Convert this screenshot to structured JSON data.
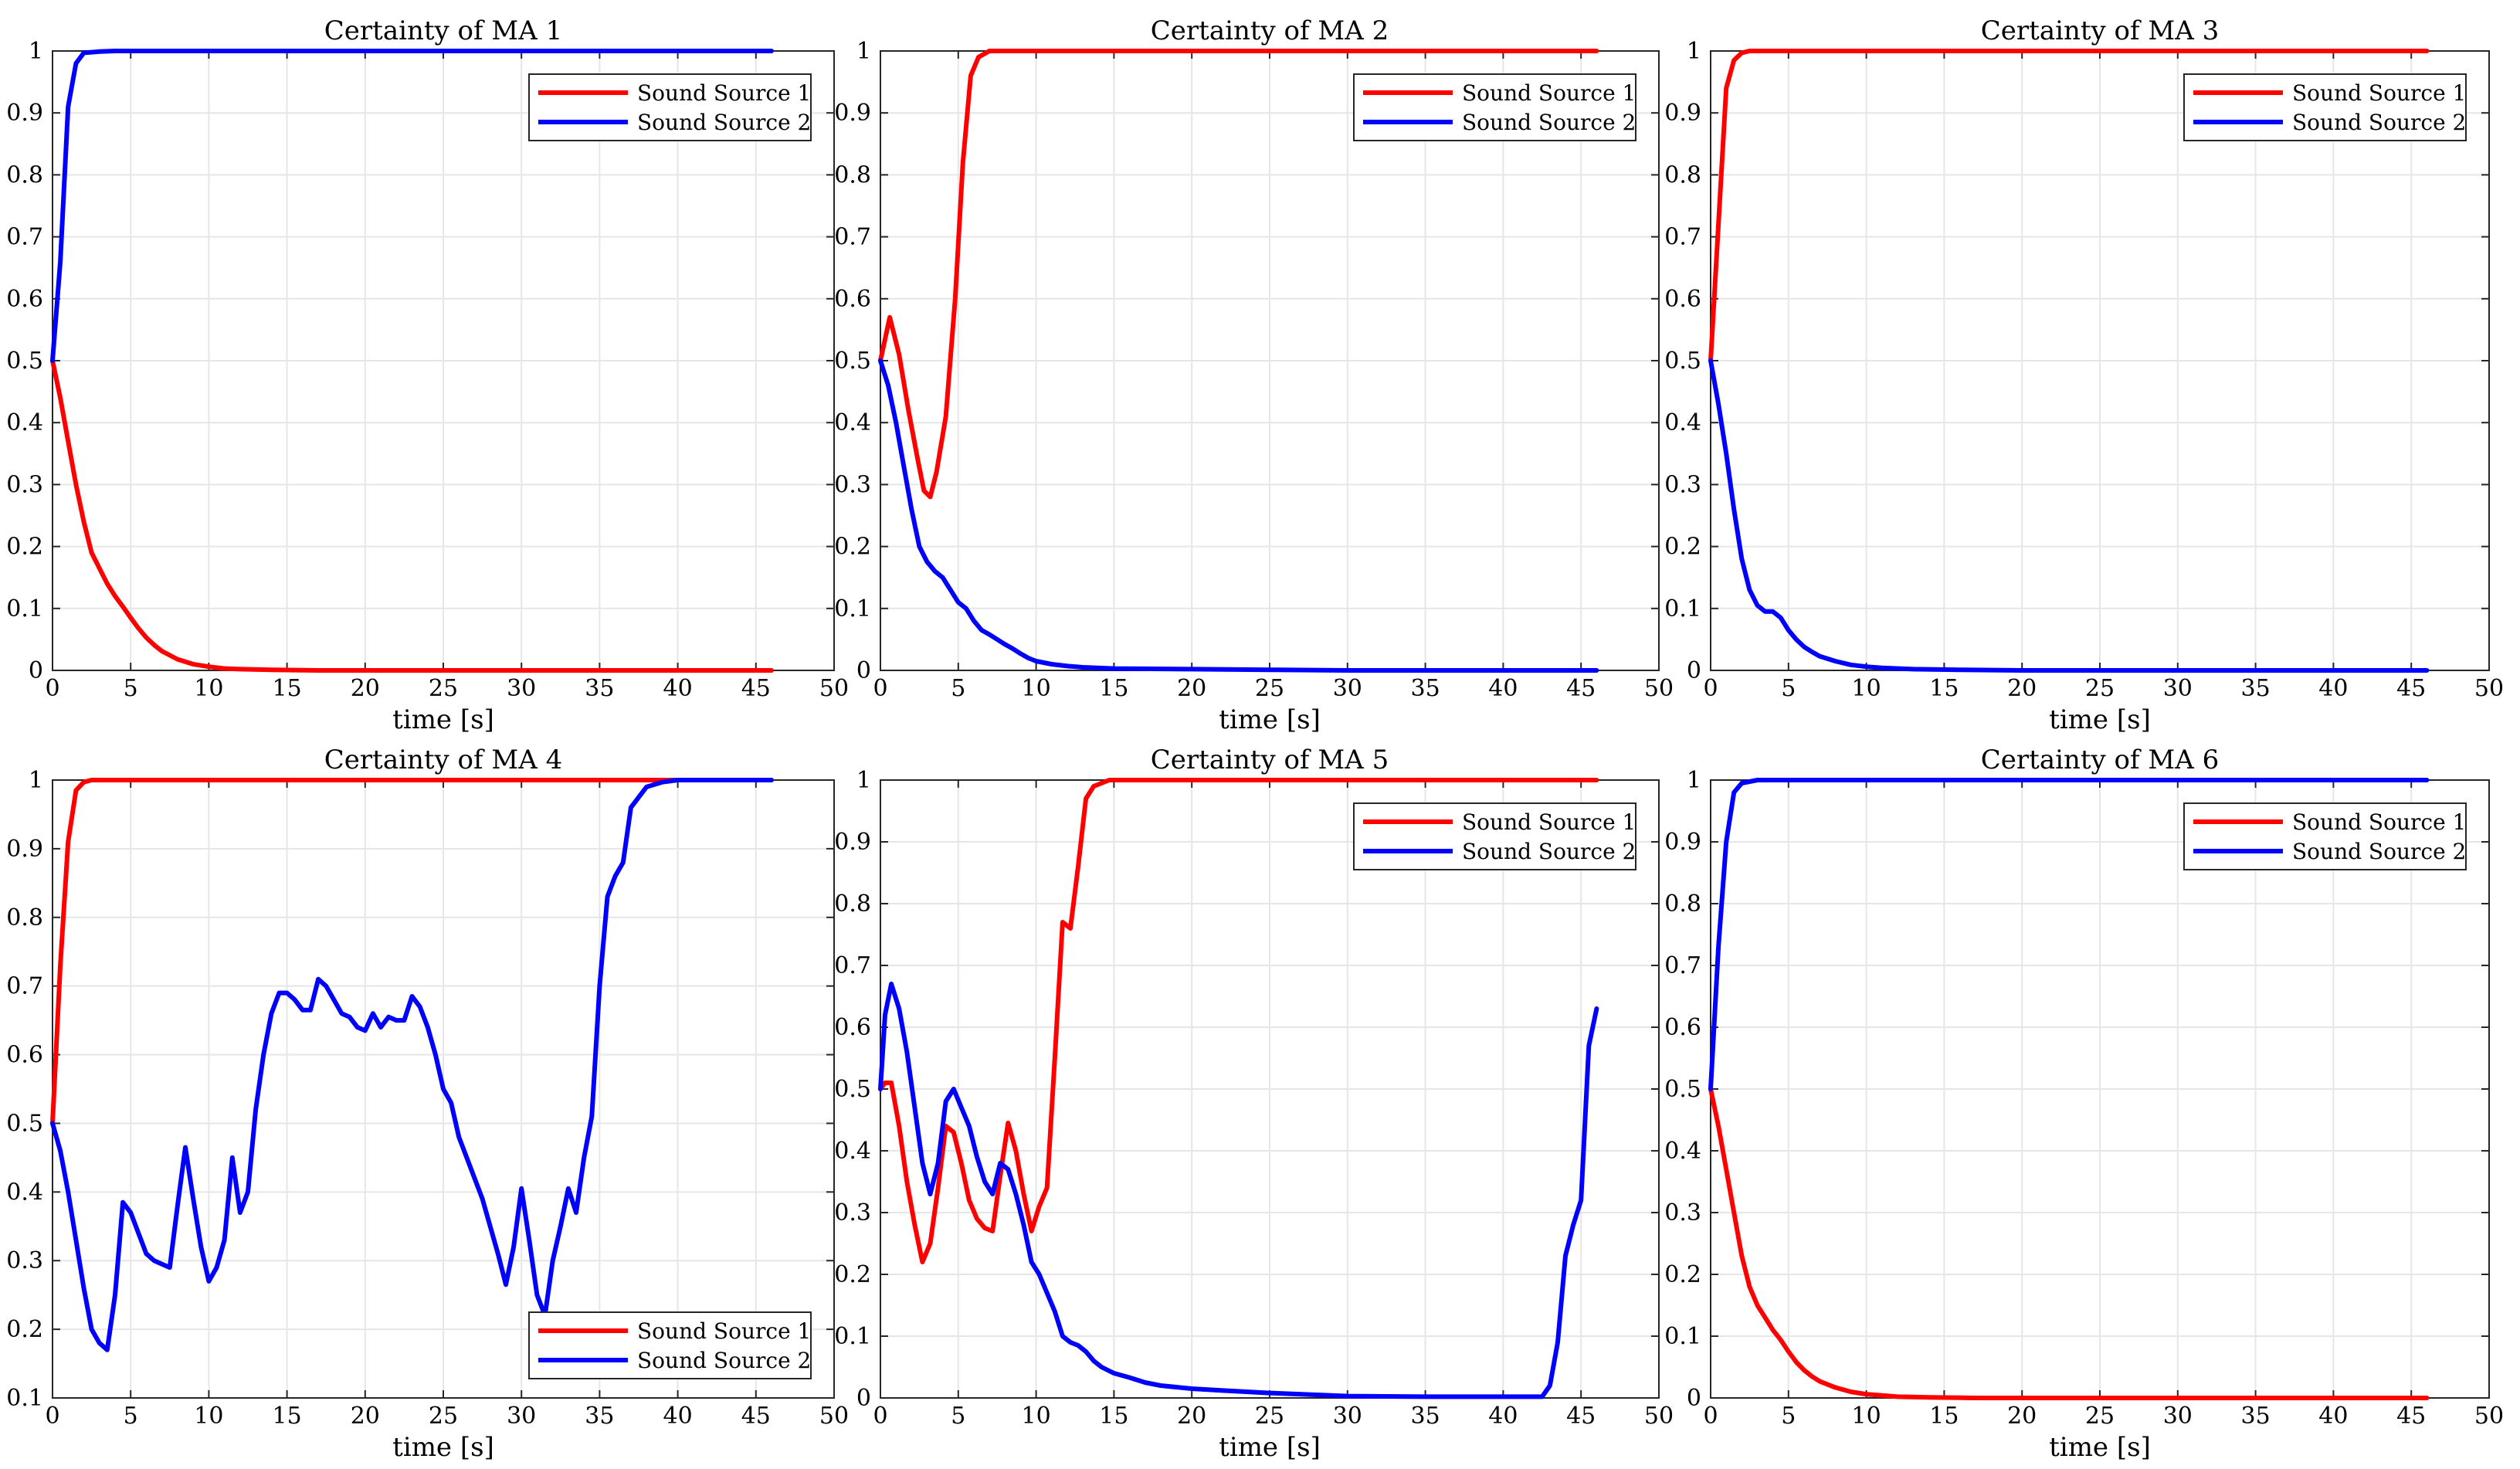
{
  "figure": {
    "background": "#ffffff",
    "series_colors": {
      "Sound Source 1": "#ff0000",
      "Sound Source 2": "#0000ff"
    }
  },
  "chart_data": [
    {
      "type": "line",
      "title": "Certainty of MA 1",
      "xlabel": "time [s]",
      "ylabel": "",
      "xlim": [
        0,
        50
      ],
      "ylim": [
        0,
        1
      ],
      "xticks": [
        "0",
        "5",
        "10",
        "15",
        "20",
        "25",
        "30",
        "35",
        "40",
        "45",
        "50"
      ],
      "yticks": [
        "0",
        "0.1",
        "0.2",
        "0.3",
        "0.4",
        "0.5",
        "0.6",
        "0.7",
        "0.8",
        "0.9",
        "1"
      ],
      "grid": true,
      "legend": "top-right",
      "series": [
        {
          "name": "Sound Source 1",
          "color": "#ff0000",
          "x": [
            0,
            0.5,
            1,
            1.5,
            2,
            2.5,
            3,
            3.5,
            4,
            4.5,
            5,
            5.5,
            6,
            6.5,
            7,
            8,
            9,
            10,
            11,
            12,
            14,
            17,
            20,
            25,
            30,
            35,
            40,
            46
          ],
          "y": [
            0.5,
            0.44,
            0.37,
            0.3,
            0.24,
            0.19,
            0.165,
            0.14,
            0.12,
            0.103,
            0.085,
            0.068,
            0.053,
            0.041,
            0.031,
            0.018,
            0.01,
            0.006,
            0.003,
            0.002,
            0.001,
            0,
            0,
            0,
            0,
            0,
            0,
            0
          ]
        },
        {
          "name": "Sound Source 2",
          "color": "#0000ff",
          "x": [
            0,
            0.5,
            1,
            1.5,
            2,
            3,
            4,
            5,
            7,
            10,
            46
          ],
          "y": [
            0.5,
            0.66,
            0.91,
            0.98,
            0.997,
            0.999,
            1,
            1,
            1,
            1,
            1
          ]
        }
      ]
    },
    {
      "type": "line",
      "title": "Certainty of MA 2",
      "xlabel": "time [s]",
      "ylabel": "",
      "xlim": [
        0,
        50
      ],
      "ylim": [
        0,
        1
      ],
      "xticks": [
        "0",
        "5",
        "10",
        "15",
        "20",
        "25",
        "30",
        "35",
        "40",
        "45",
        "50"
      ],
      "yticks": [
        "0",
        "0.1",
        "0.2",
        "0.3",
        "0.4",
        "0.5",
        "0.6",
        "0.7",
        "0.8",
        "0.9",
        "1"
      ],
      "grid": true,
      "legend": "top-right",
      "series": [
        {
          "name": "Sound Source 1",
          "color": "#ff0000",
          "x": [
            0,
            0.6,
            1.2,
            1.8,
            2.4,
            2.8,
            3.2,
            3.6,
            4.2,
            4.8,
            5.3,
            5.8,
            6.3,
            7,
            8,
            10,
            46
          ],
          "y": [
            0.5,
            0.57,
            0.51,
            0.42,
            0.34,
            0.29,
            0.28,
            0.32,
            0.41,
            0.6,
            0.82,
            0.96,
            0.99,
            1,
            1,
            1,
            1
          ]
        },
        {
          "name": "Sound Source 2",
          "color": "#0000ff",
          "x": [
            0,
            0.5,
            1,
            1.5,
            2,
            2.5,
            3,
            3.5,
            4,
            4.5,
            5,
            5.5,
            6,
            6.5,
            7,
            7.5,
            8,
            8.5,
            9,
            9.5,
            10,
            11,
            12,
            13,
            15,
            20,
            25,
            30,
            35,
            40,
            46
          ],
          "y": [
            0.5,
            0.46,
            0.4,
            0.33,
            0.26,
            0.2,
            0.175,
            0.16,
            0.15,
            0.13,
            0.11,
            0.1,
            0.08,
            0.065,
            0.058,
            0.05,
            0.042,
            0.035,
            0.027,
            0.02,
            0.015,
            0.01,
            0.007,
            0.005,
            0.003,
            0.002,
            0.001,
            0,
            0,
            0,
            0
          ]
        }
      ]
    },
    {
      "type": "line",
      "title": "Certainty of MA 3",
      "xlabel": "time [s]",
      "ylabel": "",
      "xlim": [
        0,
        50
      ],
      "ylim": [
        0,
        1
      ],
      "xticks": [
        "0",
        "5",
        "10",
        "15",
        "20",
        "25",
        "30",
        "35",
        "40",
        "45",
        "50"
      ],
      "yticks": [
        "0",
        "0.1",
        "0.2",
        "0.3",
        "0.4",
        "0.5",
        "0.6",
        "0.7",
        "0.8",
        "0.9",
        "1"
      ],
      "grid": true,
      "legend": "top-right",
      "series": [
        {
          "name": "Sound Source 1",
          "color": "#ff0000",
          "x": [
            0,
            0.5,
            1,
            1.5,
            2,
            2.5,
            3,
            4,
            6,
            10,
            46
          ],
          "y": [
            0.5,
            0.72,
            0.94,
            0.985,
            0.997,
            1,
            1,
            1,
            1,
            1,
            1
          ]
        },
        {
          "name": "Sound Source 2",
          "color": "#0000ff",
          "x": [
            0,
            0.5,
            1,
            1.5,
            2,
            2.5,
            3,
            3.5,
            4,
            4.5,
            5,
            5.5,
            6,
            6.5,
            7,
            8,
            9,
            10,
            11,
            13,
            16,
            20,
            25,
            30,
            40,
            46
          ],
          "y": [
            0.5,
            0.43,
            0.35,
            0.26,
            0.18,
            0.13,
            0.105,
            0.095,
            0.095,
            0.085,
            0.065,
            0.05,
            0.038,
            0.03,
            0.023,
            0.015,
            0.009,
            0.006,
            0.004,
            0.002,
            0.001,
            0,
            0,
            0,
            0,
            0
          ]
        }
      ]
    },
    {
      "type": "line",
      "title": "Certainty of MA 4",
      "xlabel": "time [s]",
      "ylabel": "",
      "xlim": [
        0,
        50
      ],
      "ylim": [
        0.1,
        1
      ],
      "xticks": [
        "0",
        "5",
        "10",
        "15",
        "20",
        "25",
        "30",
        "35",
        "40",
        "45",
        "50"
      ],
      "yticks": [
        "0.1",
        "0.2",
        "0.3",
        "0.4",
        "0.5",
        "0.6",
        "0.7",
        "0.8",
        "0.9",
        "1"
      ],
      "grid": true,
      "legend": "bottom-right",
      "series": [
        {
          "name": "Sound Source 1",
          "color": "#ff0000",
          "x": [
            0,
            0.5,
            1,
            1.5,
            2,
            2.5,
            3,
            4,
            6,
            10,
            46
          ],
          "y": [
            0.5,
            0.73,
            0.91,
            0.985,
            0.997,
            1,
            1,
            1,
            1,
            1,
            1
          ]
        },
        {
          "name": "Sound Source 2",
          "color": "#0000ff",
          "x": [
            0,
            0.5,
            1,
            1.5,
            2,
            2.5,
            3,
            3.5,
            4,
            4.5,
            5,
            5.5,
            6,
            6.5,
            7,
            7.5,
            8,
            8.5,
            9,
            9.5,
            10,
            10.5,
            11,
            11.5,
            12,
            12.5,
            13,
            13.5,
            14,
            14.5,
            15,
            15.5,
            16,
            16.5,
            17,
            17.5,
            18,
            18.5,
            19,
            19.5,
            20,
            20.5,
            21,
            21.5,
            22,
            22.5,
            23,
            23.5,
            24,
            24.5,
            25,
            25.5,
            26,
            26.5,
            27,
            27.5,
            28,
            28.5,
            29,
            29.5,
            30,
            30.5,
            31,
            31.5,
            32,
            32.5,
            33,
            33.5,
            34,
            34.5,
            35,
            35.5,
            36,
            36.5,
            37,
            38,
            39,
            40,
            42,
            46
          ],
          "y": [
            0.5,
            0.46,
            0.4,
            0.33,
            0.26,
            0.2,
            0.18,
            0.17,
            0.25,
            0.385,
            0.37,
            0.34,
            0.31,
            0.3,
            0.295,
            0.29,
            0.38,
            0.465,
            0.39,
            0.32,
            0.27,
            0.29,
            0.33,
            0.45,
            0.37,
            0.4,
            0.52,
            0.6,
            0.66,
            0.69,
            0.69,
            0.68,
            0.665,
            0.665,
            0.71,
            0.7,
            0.68,
            0.66,
            0.655,
            0.64,
            0.635,
            0.66,
            0.64,
            0.655,
            0.65,
            0.65,
            0.685,
            0.67,
            0.64,
            0.6,
            0.55,
            0.53,
            0.48,
            0.45,
            0.42,
            0.39,
            0.35,
            0.31,
            0.265,
            0.32,
            0.405,
            0.33,
            0.25,
            0.22,
            0.3,
            0.35,
            0.405,
            0.37,
            0.45,
            0.51,
            0.7,
            0.83,
            0.86,
            0.88,
            0.96,
            0.99,
            0.997,
            1,
            1,
            1
          ]
        }
      ]
    },
    {
      "type": "line",
      "title": "Certainty of MA 5",
      "xlabel": "time [s]",
      "ylabel": "",
      "xlim": [
        0,
        50
      ],
      "ylim": [
        0,
        1
      ],
      "xticks": [
        "0",
        "5",
        "10",
        "15",
        "20",
        "25",
        "30",
        "35",
        "40",
        "45",
        "50"
      ],
      "yticks": [
        "0",
        "0.1",
        "0.2",
        "0.3",
        "0.4",
        "0.5",
        "0.6",
        "0.7",
        "0.8",
        "0.9",
        "1"
      ],
      "grid": true,
      "legend": "top-right",
      "series": [
        {
          "name": "Sound Source 1",
          "color": "#ff0000",
          "x": [
            0,
            0.3,
            0.7,
            1.2,
            1.7,
            2.2,
            2.7,
            3.2,
            3.7,
            4.2,
            4.7,
            5.2,
            5.7,
            6.2,
            6.7,
            7.2,
            7.7,
            8.2,
            8.7,
            9.2,
            9.7,
            10.2,
            10.7,
            11.2,
            11.7,
            12.2,
            12.7,
            13.2,
            13.7,
            14.2,
            14.7,
            15.5,
            17,
            20,
            46
          ],
          "y": [
            0.5,
            0.51,
            0.51,
            0.44,
            0.35,
            0.28,
            0.22,
            0.25,
            0.34,
            0.44,
            0.43,
            0.38,
            0.32,
            0.29,
            0.275,
            0.27,
            0.36,
            0.445,
            0.4,
            0.33,
            0.27,
            0.31,
            0.34,
            0.55,
            0.77,
            0.76,
            0.86,
            0.97,
            0.99,
            0.995,
            1,
            1,
            1,
            1,
            1
          ]
        },
        {
          "name": "Sound Source 2",
          "color": "#0000ff",
          "x": [
            0,
            0.3,
            0.7,
            1.2,
            1.7,
            2.2,
            2.7,
            3.2,
            3.7,
            4.2,
            4.7,
            5.2,
            5.7,
            6.2,
            6.7,
            7.2,
            7.7,
            8.2,
            8.7,
            9.2,
            9.7,
            10.2,
            10.7,
            11.2,
            11.7,
            12.2,
            12.7,
            13.2,
            13.7,
            14.2,
            15,
            16,
            17,
            18,
            20,
            22,
            25,
            28,
            30,
            35,
            40,
            42,
            42.5,
            43,
            43.5,
            44,
            44.5,
            45,
            45.5,
            46
          ],
          "y": [
            0.5,
            0.62,
            0.67,
            0.63,
            0.56,
            0.47,
            0.38,
            0.33,
            0.38,
            0.48,
            0.5,
            0.47,
            0.44,
            0.39,
            0.35,
            0.33,
            0.38,
            0.37,
            0.33,
            0.28,
            0.22,
            0.2,
            0.17,
            0.14,
            0.1,
            0.09,
            0.085,
            0.075,
            0.06,
            0.05,
            0.04,
            0.033,
            0.025,
            0.02,
            0.015,
            0.012,
            0.008,
            0.005,
            0.003,
            0.002,
            0.002,
            0.002,
            0.002,
            0.02,
            0.09,
            0.23,
            0.28,
            0.32,
            0.57,
            0.63
          ]
        }
      ]
    },
    {
      "type": "line",
      "title": "Certainty of MA 6",
      "xlabel": "time [s]",
      "ylabel": "",
      "xlim": [
        0,
        50
      ],
      "ylim": [
        0,
        1
      ],
      "xticks": [
        "0",
        "5",
        "10",
        "15",
        "20",
        "25",
        "30",
        "35",
        "40",
        "45",
        "50"
      ],
      "yticks": [
        "0",
        "0.1",
        "0.2",
        "0.3",
        "0.4",
        "0.5",
        "0.6",
        "0.7",
        "0.8",
        "0.9",
        "1"
      ],
      "grid": true,
      "legend": "top-right",
      "series": [
        {
          "name": "Sound Source 1",
          "color": "#ff0000",
          "x": [
            0,
            0.5,
            1,
            1.5,
            2,
            2.5,
            3,
            3.5,
            4,
            4.5,
            5,
            5.5,
            6,
            6.5,
            7,
            8,
            9,
            10,
            11,
            12,
            14,
            17,
            20,
            25,
            30,
            35,
            40,
            46
          ],
          "y": [
            0.5,
            0.44,
            0.37,
            0.3,
            0.23,
            0.18,
            0.15,
            0.13,
            0.11,
            0.094,
            0.075,
            0.058,
            0.045,
            0.035,
            0.027,
            0.017,
            0.01,
            0.006,
            0.004,
            0.002,
            0.001,
            0,
            0,
            0,
            0,
            0,
            0,
            0
          ]
        },
        {
          "name": "Sound Source 2",
          "color": "#0000ff",
          "x": [
            0,
            0.5,
            1,
            1.5,
            2,
            3,
            4,
            5,
            7,
            10,
            46
          ],
          "y": [
            0.5,
            0.73,
            0.9,
            0.98,
            0.995,
            1,
            1,
            1,
            1,
            1,
            1
          ]
        }
      ]
    }
  ]
}
